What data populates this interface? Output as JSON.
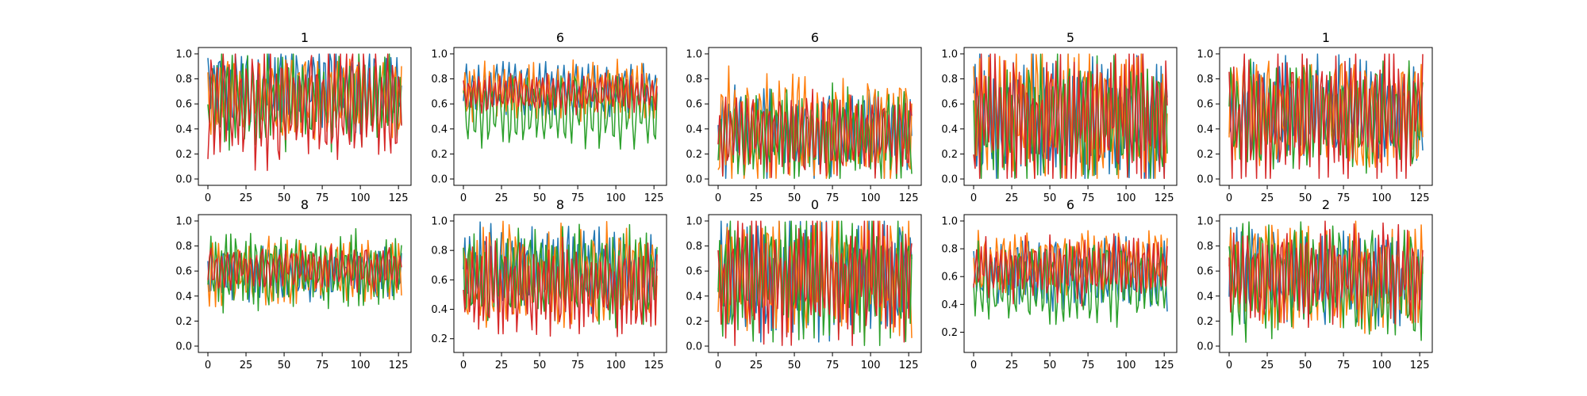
{
  "figure": {
    "colors": [
      "#1f77b4",
      "#ff7f0e",
      "#2ca02c",
      "#d62728"
    ]
  },
  "chart_data": [
    {
      "type": "line",
      "title": "1",
      "xlim": [
        0,
        127
      ],
      "ylim": [
        0.0,
        1.0
      ],
      "xticks": [
        "0",
        "25",
        "50",
        "75",
        "100",
        "125"
      ],
      "yticks": [
        "0.0",
        "0.2",
        "0.4",
        "0.6",
        "0.8",
        "1.0"
      ],
      "points": 128,
      "series": [
        {
          "color": "#1f77b4",
          "base": 0.72,
          "amp": 0.28,
          "freq": 0.55,
          "seed": 1
        },
        {
          "color": "#ff7f0e",
          "base": 0.66,
          "amp": 0.24,
          "freq": 0.47,
          "seed": 2
        },
        {
          "color": "#2ca02c",
          "base": 0.63,
          "amp": 0.3,
          "freq": 0.6,
          "seed": 3
        },
        {
          "color": "#d62728",
          "base": 0.6,
          "amp": 0.38,
          "freq": 0.52,
          "seed": 4
        }
      ]
    },
    {
      "type": "line",
      "title": "6",
      "xlim": [
        0,
        127
      ],
      "ylim": [
        0.0,
        1.0
      ],
      "xticks": [
        "0",
        "25",
        "50",
        "75",
        "100",
        "125"
      ],
      "yticks": [
        "0.0",
        "0.2",
        "0.4",
        "0.6",
        "0.8",
        "1.0"
      ],
      "points": 128,
      "series": [
        {
          "color": "#1f77b4",
          "base": 0.72,
          "amp": 0.16,
          "freq": 0.5,
          "seed": 5
        },
        {
          "color": "#ff7f0e",
          "base": 0.7,
          "amp": 0.18,
          "freq": 0.62,
          "seed": 6
        },
        {
          "color": "#2ca02c",
          "base": 0.55,
          "amp": 0.22,
          "freq": 0.44,
          "seed": 7
        },
        {
          "color": "#d62728",
          "base": 0.68,
          "amp": 0.12,
          "freq": 0.58,
          "seed": 8
        }
      ]
    },
    {
      "type": "line",
      "title": "6",
      "xlim": [
        0,
        127
      ],
      "ylim": [
        0.0,
        1.0
      ],
      "xticks": [
        "0",
        "25",
        "50",
        "75",
        "100",
        "125"
      ],
      "yticks": [
        "0.0",
        "0.2",
        "0.4",
        "0.6",
        "0.8",
        "1.0"
      ],
      "points": 128,
      "series": [
        {
          "color": "#1f77b4",
          "base": 0.38,
          "amp": 0.3,
          "freq": 0.52,
          "seed": 9
        },
        {
          "color": "#ff7f0e",
          "base": 0.4,
          "amp": 0.35,
          "freq": 0.48,
          "seed": 10
        },
        {
          "color": "#2ca02c",
          "base": 0.34,
          "amp": 0.3,
          "freq": 0.6,
          "seed": 11
        },
        {
          "color": "#d62728",
          "base": 0.36,
          "amp": 0.26,
          "freq": 0.56,
          "seed": 12
        }
      ]
    },
    {
      "type": "line",
      "title": "5",
      "xlim": [
        0,
        127
      ],
      "ylim": [
        0.0,
        1.0
      ],
      "xticks": [
        "0",
        "25",
        "50",
        "75",
        "100",
        "125"
      ],
      "yticks": [
        "0.0",
        "0.2",
        "0.4",
        "0.6",
        "0.8",
        "1.0"
      ],
      "points": 128,
      "series": [
        {
          "color": "#1f77b4",
          "base": 0.48,
          "amp": 0.42,
          "freq": 0.62,
          "seed": 13
        },
        {
          "color": "#ff7f0e",
          "base": 0.5,
          "amp": 0.44,
          "freq": 0.58,
          "seed": 14
        },
        {
          "color": "#2ca02c",
          "base": 0.46,
          "amp": 0.4,
          "freq": 0.54,
          "seed": 15
        },
        {
          "color": "#d62728",
          "base": 0.5,
          "amp": 0.46,
          "freq": 0.66,
          "seed": 16
        }
      ]
    },
    {
      "type": "line",
      "title": "1",
      "xlim": [
        0,
        127
      ],
      "ylim": [
        0.0,
        1.0
      ],
      "xticks": [
        "0",
        "25",
        "50",
        "75",
        "100",
        "125"
      ],
      "yticks": [
        "0.0",
        "0.2",
        "0.4",
        "0.6",
        "0.8",
        "1.0"
      ],
      "points": 128,
      "series": [
        {
          "color": "#1f77b4",
          "base": 0.55,
          "amp": 0.32,
          "freq": 0.57,
          "seed": 17
        },
        {
          "color": "#ff7f0e",
          "base": 0.52,
          "amp": 0.36,
          "freq": 0.5,
          "seed": 18
        },
        {
          "color": "#2ca02c",
          "base": 0.5,
          "amp": 0.34,
          "freq": 0.46,
          "seed": 19
        },
        {
          "color": "#d62728",
          "base": 0.5,
          "amp": 0.42,
          "freq": 0.63,
          "seed": 20
        }
      ]
    },
    {
      "type": "line",
      "title": "8",
      "xlim": [
        0,
        127
      ],
      "ylim": [
        0.0,
        1.0
      ],
      "xticks": [
        "0",
        "25",
        "50",
        "75",
        "100",
        "125"
      ],
      "yticks": [
        "0.0",
        "0.2",
        "0.4",
        "0.6",
        "0.8",
        "1.0"
      ],
      "points": 128,
      "series": [
        {
          "color": "#1f77b4",
          "base": 0.58,
          "amp": 0.16,
          "freq": 0.55,
          "seed": 21
        },
        {
          "color": "#ff7f0e",
          "base": 0.6,
          "amp": 0.2,
          "freq": 0.49,
          "seed": 22
        },
        {
          "color": "#2ca02c",
          "base": 0.6,
          "amp": 0.24,
          "freq": 0.61,
          "seed": 23
        },
        {
          "color": "#d62728",
          "base": 0.62,
          "amp": 0.14,
          "freq": 0.53,
          "seed": 24
        }
      ]
    },
    {
      "type": "line",
      "title": "8",
      "xlim": [
        0,
        127
      ],
      "ylim": [
        0.15,
        1.0
      ],
      "xticks": [
        "0",
        "25",
        "50",
        "75",
        "100",
        "125"
      ],
      "yticks": [
        "0.2",
        "0.4",
        "0.6",
        "0.8",
        "1.0"
      ],
      "points": 128,
      "series": [
        {
          "color": "#1f77b4",
          "base": 0.68,
          "amp": 0.22,
          "freq": 0.59,
          "seed": 25
        },
        {
          "color": "#ff7f0e",
          "base": 0.62,
          "amp": 0.28,
          "freq": 0.47,
          "seed": 26
        },
        {
          "color": "#2ca02c",
          "base": 0.62,
          "amp": 0.26,
          "freq": 0.55,
          "seed": 27
        },
        {
          "color": "#d62728",
          "base": 0.55,
          "amp": 0.24,
          "freq": 0.64,
          "seed": 28
        }
      ]
    },
    {
      "type": "line",
      "title": "0",
      "xlim": [
        0,
        127
      ],
      "ylim": [
        0.0,
        1.0
      ],
      "xticks": [
        "0",
        "25",
        "50",
        "75",
        "100",
        "125"
      ],
      "yticks": [
        "0.0",
        "0.2",
        "0.4",
        "0.6",
        "0.8",
        "1.0"
      ],
      "points": 128,
      "series": [
        {
          "color": "#1f77b4",
          "base": 0.56,
          "amp": 0.38,
          "freq": 0.58,
          "seed": 29
        },
        {
          "color": "#ff7f0e",
          "base": 0.55,
          "amp": 0.38,
          "freq": 0.52,
          "seed": 30
        },
        {
          "color": "#2ca02c",
          "base": 0.55,
          "amp": 0.4,
          "freq": 0.6,
          "seed": 31
        },
        {
          "color": "#d62728",
          "base": 0.55,
          "amp": 0.42,
          "freq": 0.65,
          "seed": 32
        }
      ]
    },
    {
      "type": "line",
      "title": "6",
      "xlim": [
        0,
        127
      ],
      "ylim": [
        0.1,
        1.0
      ],
      "xticks": [
        "0",
        "25",
        "50",
        "75",
        "100",
        "125"
      ],
      "yticks": [
        "0.2",
        "0.4",
        "0.6",
        "0.8",
        "1.0"
      ],
      "points": 128,
      "series": [
        {
          "color": "#1f77b4",
          "base": 0.62,
          "amp": 0.2,
          "freq": 0.56,
          "seed": 33
        },
        {
          "color": "#ff7f0e",
          "base": 0.7,
          "amp": 0.18,
          "freq": 0.5,
          "seed": 34
        },
        {
          "color": "#2ca02c",
          "base": 0.55,
          "amp": 0.22,
          "freq": 0.45,
          "seed": 35
        },
        {
          "color": "#d62728",
          "base": 0.65,
          "amp": 0.18,
          "freq": 0.62,
          "seed": 36
        }
      ]
    },
    {
      "type": "line",
      "title": "2",
      "xlim": [
        0,
        127
      ],
      "ylim": [
        0.0,
        1.0
      ],
      "xticks": [
        "0",
        "25",
        "50",
        "75",
        "100",
        "125"
      ],
      "yticks": [
        "0.0",
        "0.2",
        "0.4",
        "0.6",
        "0.8",
        "1.0"
      ],
      "points": 128,
      "series": [
        {
          "color": "#1f77b4",
          "base": 0.55,
          "amp": 0.3,
          "freq": 0.57,
          "seed": 37
        },
        {
          "color": "#ff7f0e",
          "base": 0.55,
          "amp": 0.32,
          "freq": 0.51,
          "seed": 38
        },
        {
          "color": "#2ca02c",
          "base": 0.52,
          "amp": 0.35,
          "freq": 0.47,
          "seed": 39
        },
        {
          "color": "#d62728",
          "base": 0.58,
          "amp": 0.3,
          "freq": 0.63,
          "seed": 40
        }
      ]
    }
  ]
}
